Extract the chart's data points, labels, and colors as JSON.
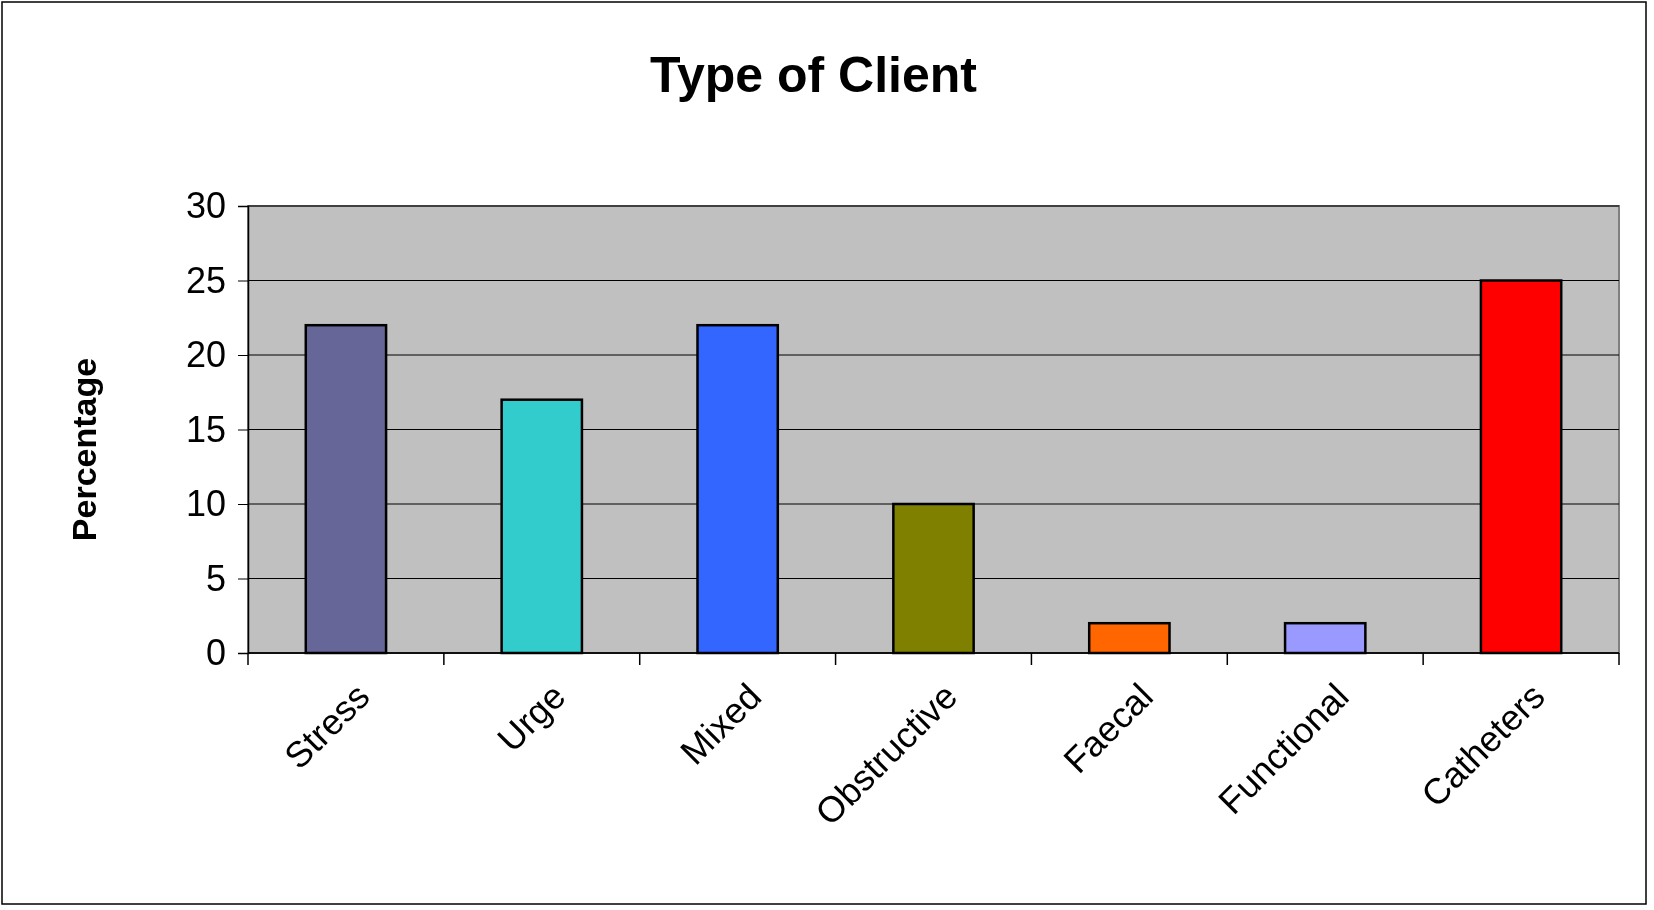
{
  "chart_data": {
    "type": "bar",
    "title": "Type of Client",
    "ylabel": "Percentage",
    "categories": [
      "Stress",
      "Urge",
      "Mixed",
      "Obstructive",
      "Faecal",
      "Functional",
      "Catheters"
    ],
    "values": [
      22,
      17,
      22,
      10,
      2,
      2,
      25
    ],
    "colors": [
      "#666699",
      "#33cccc",
      "#3366ff",
      "#808000",
      "#ff6600",
      "#9999ff",
      "#ff0000"
    ],
    "ylim": [
      0,
      30
    ],
    "yticks": [
      0,
      5,
      10,
      15,
      20,
      25,
      30
    ],
    "grid": "y"
  }
}
